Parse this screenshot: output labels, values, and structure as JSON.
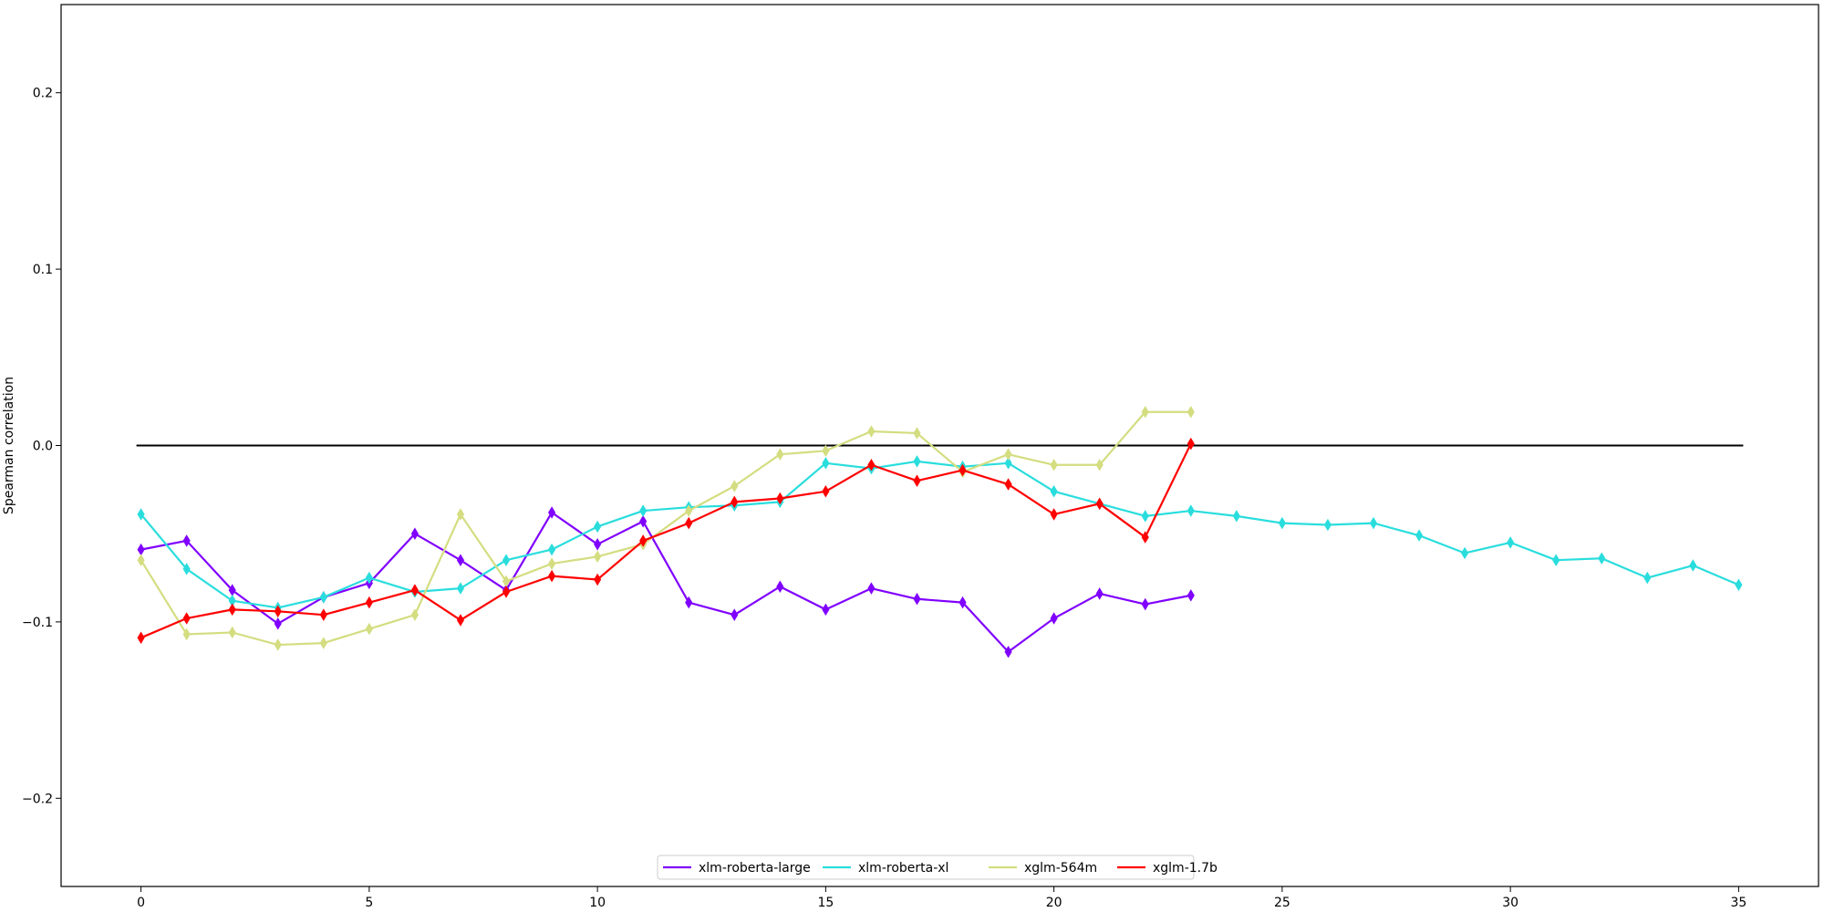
{
  "chart_data": {
    "type": "line",
    "title": "",
    "xlabel": "",
    "ylabel": "Spearman correlation",
    "xlim": [
      -1.75,
      36.75
    ],
    "ylim": [
      -0.25,
      0.25
    ],
    "xticks": [
      0,
      5,
      10,
      15,
      20,
      25,
      30,
      35
    ],
    "xtick_labels": [
      "0",
      "5",
      "10",
      "15",
      "20",
      "25",
      "30",
      "35"
    ],
    "yticks": [
      -0.2,
      -0.1,
      0.0,
      0.1,
      0.2
    ],
    "ytick_labels": [
      "−0.2",
      "−0.1",
      "0.0",
      "0.1",
      "0.2"
    ],
    "grid": false,
    "legend_position": "bottom-center",
    "reference_line": {
      "y": 0.0,
      "x_range": [
        -0.1,
        35.1
      ],
      "color": "#000000"
    },
    "series": [
      {
        "name": "xlm-roberta-large",
        "color": "#8000ff",
        "marker": "thin-diamond",
        "x": [
          0,
          1,
          2,
          3,
          4,
          5,
          6,
          7,
          8,
          9,
          10,
          11,
          12,
          13,
          14,
          15,
          16,
          17,
          18,
          19,
          20,
          21,
          22,
          23
        ],
        "values": [
          -0.059,
          -0.054,
          -0.082,
          -0.101,
          -0.086,
          -0.078,
          -0.05,
          -0.065,
          -0.082,
          -0.038,
          -0.056,
          -0.043,
          -0.089,
          -0.096,
          -0.08,
          -0.093,
          -0.081,
          -0.087,
          -0.089,
          -0.117,
          -0.098,
          -0.084,
          -0.09,
          -0.085
        ]
      },
      {
        "name": "xlm-roberta-xl",
        "color": "#2adddd",
        "marker": "thin-diamond",
        "x": [
          0,
          1,
          2,
          3,
          4,
          5,
          6,
          7,
          8,
          9,
          10,
          11,
          12,
          13,
          14,
          15,
          16,
          17,
          18,
          19,
          20,
          21,
          22,
          23,
          24,
          25,
          26,
          27,
          28,
          29,
          30,
          31,
          32,
          33,
          34,
          35
        ],
        "values": [
          -0.039,
          -0.07,
          -0.088,
          -0.092,
          -0.086,
          -0.075,
          -0.083,
          -0.081,
          -0.065,
          -0.059,
          -0.046,
          -0.037,
          -0.035,
          -0.034,
          -0.032,
          -0.01,
          -0.013,
          -0.009,
          -0.012,
          -0.01,
          -0.026,
          -0.033,
          -0.04,
          -0.037,
          -0.04,
          -0.044,
          -0.045,
          -0.044,
          -0.051,
          -0.061,
          -0.055,
          -0.065,
          -0.064,
          -0.075,
          -0.068,
          -0.079
        ]
      },
      {
        "name": "xglm-564m",
        "color": "#d4dd80",
        "marker": "thin-diamond",
        "x": [
          0,
          1,
          2,
          3,
          4,
          5,
          6,
          7,
          8,
          9,
          10,
          11,
          12,
          13,
          14,
          15,
          16,
          17,
          18,
          19,
          20,
          21,
          22,
          23
        ],
        "values": [
          -0.065,
          -0.107,
          -0.106,
          -0.113,
          -0.112,
          -0.104,
          -0.096,
          -0.039,
          -0.077,
          -0.067,
          -0.063,
          -0.056,
          -0.037,
          -0.023,
          -0.005,
          -0.003,
          0.008,
          0.007,
          -0.015,
          -0.005,
          -0.011,
          -0.011,
          0.019,
          0.019
        ]
      },
      {
        "name": "xglm-1.7b",
        "color": "#ff0000",
        "marker": "thin-diamond",
        "x": [
          0,
          1,
          2,
          3,
          4,
          5,
          6,
          7,
          8,
          9,
          10,
          11,
          12,
          13,
          14,
          15,
          16,
          17,
          18,
          19,
          20,
          21,
          22,
          23
        ],
        "values": [
          -0.109,
          -0.098,
          -0.093,
          -0.094,
          -0.096,
          -0.089,
          -0.082,
          -0.099,
          -0.083,
          -0.074,
          -0.076,
          -0.054,
          -0.044,
          -0.032,
          -0.03,
          -0.026,
          -0.011,
          -0.02,
          -0.014,
          -0.022,
          -0.039,
          -0.033,
          -0.052,
          0.001
        ]
      }
    ]
  }
}
